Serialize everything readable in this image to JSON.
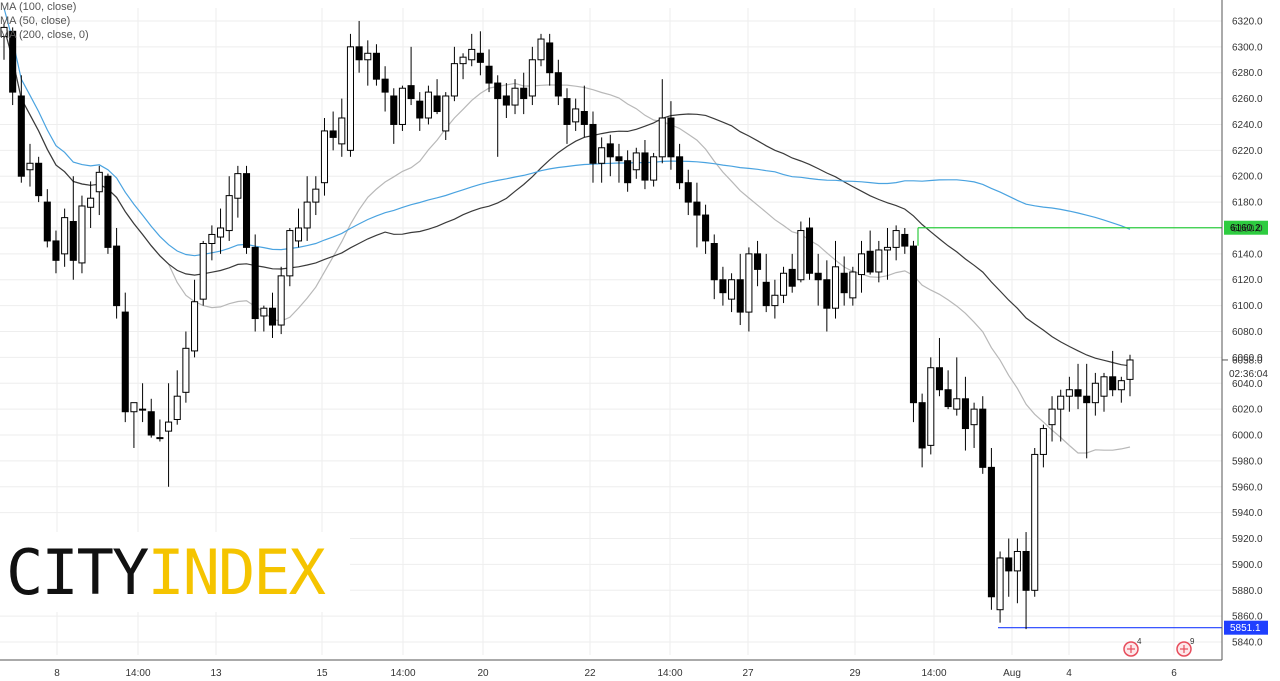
{
  "legend": {
    "items": [
      "MA (100, close)",
      "MA (50, close)",
      "MA (200, close, 0)"
    ]
  },
  "logo": {
    "part1": "CITY",
    "part2": "INDEX"
  },
  "colors": {
    "bull_body": "#ffffff",
    "bear_body": "#000000",
    "wick": "#000000",
    "ma100": "#b8b8b8",
    "ma50": "#3a3a3a",
    "ma200": "#4aa3e0",
    "resistance": "#2ecc40",
    "support": "#1f3fff",
    "grid": "#eeeeee",
    "axis_text": "#333333",
    "badge_text_dark": "#000000",
    "badge_text_light": "#ffffff"
  },
  "chart_data": {
    "type": "candlestick",
    "ylim": [
      5830,
      6330
    ],
    "y_ticks": [
      5840,
      5860,
      5880,
      5900,
      5920,
      5940,
      5960,
      5980,
      6000,
      6020,
      6040,
      6060,
      6080,
      6100,
      6120,
      6140,
      6160,
      6180,
      6200,
      6220,
      6240,
      6260,
      6280,
      6300,
      6320
    ],
    "x_ticks": [
      "8",
      "14:00",
      "13",
      "15",
      "14:00",
      "20",
      "22",
      "14:00",
      "27",
      "29",
      "14:00",
      "Aug",
      "4",
      "6"
    ],
    "current_price": {
      "value": "6058.0",
      "countdown": "02:36:04"
    },
    "levels": [
      {
        "label": "6160.2",
        "value": 6160.2,
        "color": "green"
      },
      {
        "label": "5851.1",
        "value": 5851.1,
        "color": "blue"
      }
    ],
    "event_markers": [
      {
        "label": "4"
      },
      {
        "label": "9"
      }
    ],
    "candles": [
      [
        6308,
        6318,
        6290,
        6315
      ],
      [
        6312,
        6315,
        6255,
        6265
      ],
      [
        6262,
        6278,
        6195,
        6200
      ],
      [
        6205,
        6225,
        6192,
        6210
      ],
      [
        6210,
        6215,
        6180,
        6185
      ],
      [
        6180,
        6190,
        6145,
        6150
      ],
      [
        6150,
        6158,
        6125,
        6135
      ],
      [
        6140,
        6175,
        6130,
        6168
      ],
      [
        6165,
        6200,
        6120,
        6135
      ],
      [
        6133,
        6185,
        6125,
        6177
      ],
      [
        6176,
        6196,
        6160,
        6183
      ],
      [
        6188,
        6208,
        6170,
        6203
      ],
      [
        6200,
        6202,
        6140,
        6145
      ],
      [
        6146,
        6160,
        6090,
        6100
      ],
      [
        6095,
        6110,
        6010,
        6018
      ],
      [
        6018,
        6025,
        5990,
        6025
      ],
      [
        6020,
        6040,
        6010,
        6020
      ],
      [
        6018,
        6028,
        5998,
        6000
      ],
      [
        5998,
        6012,
        5995,
        5998
      ],
      [
        6003,
        6040,
        5960,
        6010
      ],
      [
        6012,
        6050,
        6008,
        6030
      ],
      [
        6033,
        6080,
        6025,
        6067
      ],
      [
        6065,
        6120,
        6060,
        6103
      ],
      [
        6105,
        6150,
        6100,
        6148
      ],
      [
        6148,
        6162,
        6135,
        6155
      ],
      [
        6153,
        6175,
        6140,
        6160
      ],
      [
        6158,
        6200,
        6150,
        6185
      ],
      [
        6183,
        6208,
        6168,
        6202
      ],
      [
        6202,
        6208,
        6140,
        6145
      ],
      [
        6145,
        6155,
        6080,
        6090
      ],
      [
        6092,
        6100,
        6080,
        6098
      ],
      [
        6098,
        6110,
        6075,
        6085
      ],
      [
        6085,
        6130,
        6078,
        6123
      ],
      [
        6123,
        6160,
        6115,
        6158
      ],
      [
        6150,
        6175,
        6145,
        6160
      ],
      [
        6160,
        6200,
        6150,
        6180
      ],
      [
        6180,
        6200,
        6170,
        6190
      ],
      [
        6195,
        6245,
        6185,
        6235
      ],
      [
        6235,
        6250,
        6220,
        6230
      ],
      [
        6225,
        6260,
        6215,
        6245
      ],
      [
        6220,
        6310,
        6215,
        6300
      ],
      [
        6300,
        6320,
        6280,
        6290
      ],
      [
        6290,
        6305,
        6270,
        6295
      ],
      [
        6295,
        6302,
        6270,
        6275
      ],
      [
        6275,
        6285,
        6250,
        6265
      ],
      [
        6262,
        6268,
        6225,
        6240
      ],
      [
        6240,
        6270,
        6235,
        6268
      ],
      [
        6270,
        6300,
        6255,
        6260
      ],
      [
        6258,
        6265,
        6235,
        6245
      ],
      [
        6245,
        6270,
        6240,
        6265
      ],
      [
        6262,
        6275,
        6248,
        6250
      ],
      [
        6235,
        6265,
        6228,
        6262
      ],
      [
        6262,
        6300,
        6258,
        6287
      ],
      [
        6287,
        6295,
        6275,
        6292
      ],
      [
        6290,
        6310,
        6285,
        6298
      ],
      [
        6295,
        6312,
        6278,
        6288
      ],
      [
        6285,
        6298,
        6265,
        6272
      ],
      [
        6272,
        6278,
        6215,
        6260
      ],
      [
        6262,
        6272,
        6245,
        6255
      ],
      [
        6255,
        6275,
        6248,
        6268
      ],
      [
        6268,
        6280,
        6248,
        6260
      ],
      [
        6262,
        6300,
        6255,
        6290
      ],
      [
        6290,
        6310,
        6285,
        6306
      ],
      [
        6303,
        6310,
        6270,
        6280
      ],
      [
        6280,
        6290,
        6255,
        6262
      ],
      [
        6260,
        6268,
        6225,
        6240
      ],
      [
        6242,
        6260,
        6235,
        6252
      ],
      [
        6250,
        6270,
        6230,
        6240
      ],
      [
        6240,
        6250,
        6195,
        6210
      ],
      [
        6210,
        6230,
        6195,
        6222
      ],
      [
        6225,
        6232,
        6200,
        6215
      ],
      [
        6215,
        6225,
        6195,
        6212
      ],
      [
        6212,
        6220,
        6188,
        6195
      ],
      [
        6205,
        6222,
        6198,
        6218
      ],
      [
        6218,
        6228,
        6190,
        6197
      ],
      [
        6197,
        6218,
        6192,
        6215
      ],
      [
        6215,
        6275,
        6210,
        6245
      ],
      [
        6245,
        6258,
        6205,
        6215
      ],
      [
        6215,
        6225,
        6190,
        6195
      ],
      [
        6195,
        6205,
        6170,
        6180
      ],
      [
        6180,
        6195,
        6145,
        6170
      ],
      [
        6170,
        6178,
        6140,
        6150
      ],
      [
        6148,
        6155,
        6105,
        6120
      ],
      [
        6120,
        6130,
        6100,
        6110
      ],
      [
        6105,
        6125,
        6095,
        6120
      ],
      [
        6120,
        6140,
        6085,
        6095
      ],
      [
        6095,
        6145,
        6080,
        6140
      ],
      [
        6140,
        6150,
        6115,
        6128
      ],
      [
        6118,
        6140,
        6095,
        6100
      ],
      [
        6100,
        6120,
        6090,
        6108
      ],
      [
        6108,
        6130,
        6102,
        6125
      ],
      [
        6128,
        6140,
        6110,
        6115
      ],
      [
        6120,
        6165,
        6118,
        6158
      ],
      [
        6160,
        6168,
        6120,
        6125
      ],
      [
        6125,
        6140,
        6100,
        6120
      ],
      [
        6120,
        6135,
        6080,
        6098
      ],
      [
        6098,
        6150,
        6090,
        6130
      ],
      [
        6125,
        6138,
        6100,
        6110
      ],
      [
        6106,
        6130,
        6100,
        6126
      ],
      [
        6124,
        6150,
        6110,
        6140
      ],
      [
        6142,
        6158,
        6124,
        6126
      ],
      [
        6126,
        6150,
        6118,
        6143
      ],
      [
        6143,
        6160,
        6120,
        6145
      ],
      [
        6145,
        6162,
        6135,
        6158
      ],
      [
        6155,
        6160,
        6140,
        6146
      ],
      [
        6146,
        6150,
        6010,
        6025
      ],
      [
        6025,
        6032,
        5975,
        5990
      ],
      [
        5992,
        6060,
        5985,
        6052
      ],
      [
        6052,
        6075,
        6030,
        6035
      ],
      [
        6035,
        6050,
        6020,
        6022
      ],
      [
        6020,
        6060,
        6015,
        6028
      ],
      [
        6028,
        6045,
        5988,
        6005
      ],
      [
        6008,
        6025,
        5990,
        6020
      ],
      [
        6020,
        6030,
        5970,
        5975
      ],
      [
        5975,
        5990,
        5865,
        5875
      ],
      [
        5865,
        5910,
        5855,
        5905
      ],
      [
        5905,
        5920,
        5875,
        5895
      ],
      [
        5895,
        5920,
        5870,
        5910
      ],
      [
        5910,
        5925,
        5850,
        5880
      ],
      [
        5880,
        5990,
        5875,
        5985
      ],
      [
        5985,
        6008,
        5975,
        6005
      ],
      [
        6008,
        6030,
        5995,
        6020
      ],
      [
        6020,
        6035,
        5995,
        6030
      ],
      [
        6030,
        6045,
        6018,
        6035
      ],
      [
        6035,
        6055,
        6020,
        6030
      ],
      [
        6030,
        6055,
        5982,
        6025
      ],
      [
        6025,
        6048,
        6015,
        6040
      ],
      [
        6030,
        6048,
        6018,
        6045
      ],
      [
        6045,
        6065,
        6030,
        6035
      ],
      [
        6035,
        6045,
        6025,
        6042
      ],
      [
        6043,
        6062,
        6030,
        6058
      ]
    ]
  }
}
